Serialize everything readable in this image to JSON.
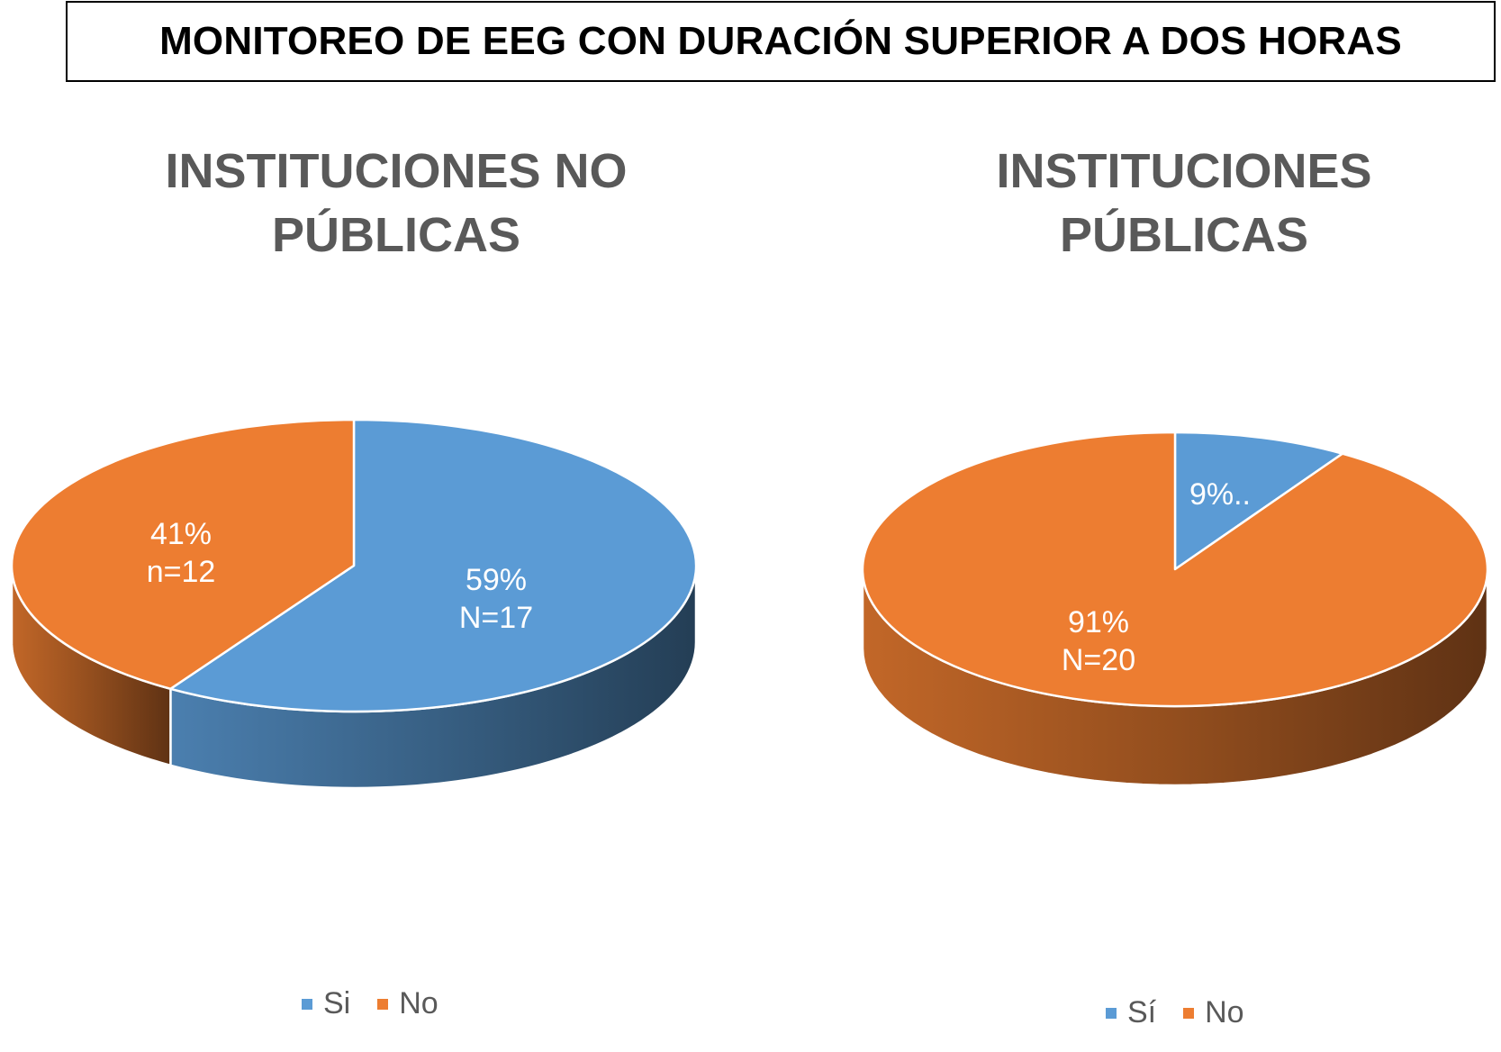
{
  "main_title": "MONITOREO DE EEG CON DURACIÓN SUPERIOR A DOS HORAS",
  "colors": {
    "si": "#5B9BD5",
    "no": "#ED7D31",
    "title_text": "#595959"
  },
  "chart_data": [
    {
      "type": "pie",
      "title_lines": [
        "INSTITUCIONES NO",
        "PÚBLICAS"
      ],
      "categories": [
        "Si",
        "No"
      ],
      "values": [
        59,
        41
      ],
      "data_labels": [
        [
          "59%",
          "N=17"
        ],
        [
          "41%",
          "n=12"
        ]
      ],
      "legend": [
        "Si",
        "No"
      ],
      "legend_position": "bottom"
    },
    {
      "type": "pie",
      "title_lines": [
        "INSTITUCIONES",
        "PÚBLICAS"
      ],
      "categories": [
        "Sí",
        "No"
      ],
      "values": [
        9,
        91
      ],
      "data_labels": [
        [
          "9%.."
        ],
        [
          "91%",
          "N=20"
        ]
      ],
      "legend": [
        "Sí",
        "No"
      ],
      "legend_position": "bottom"
    }
  ]
}
